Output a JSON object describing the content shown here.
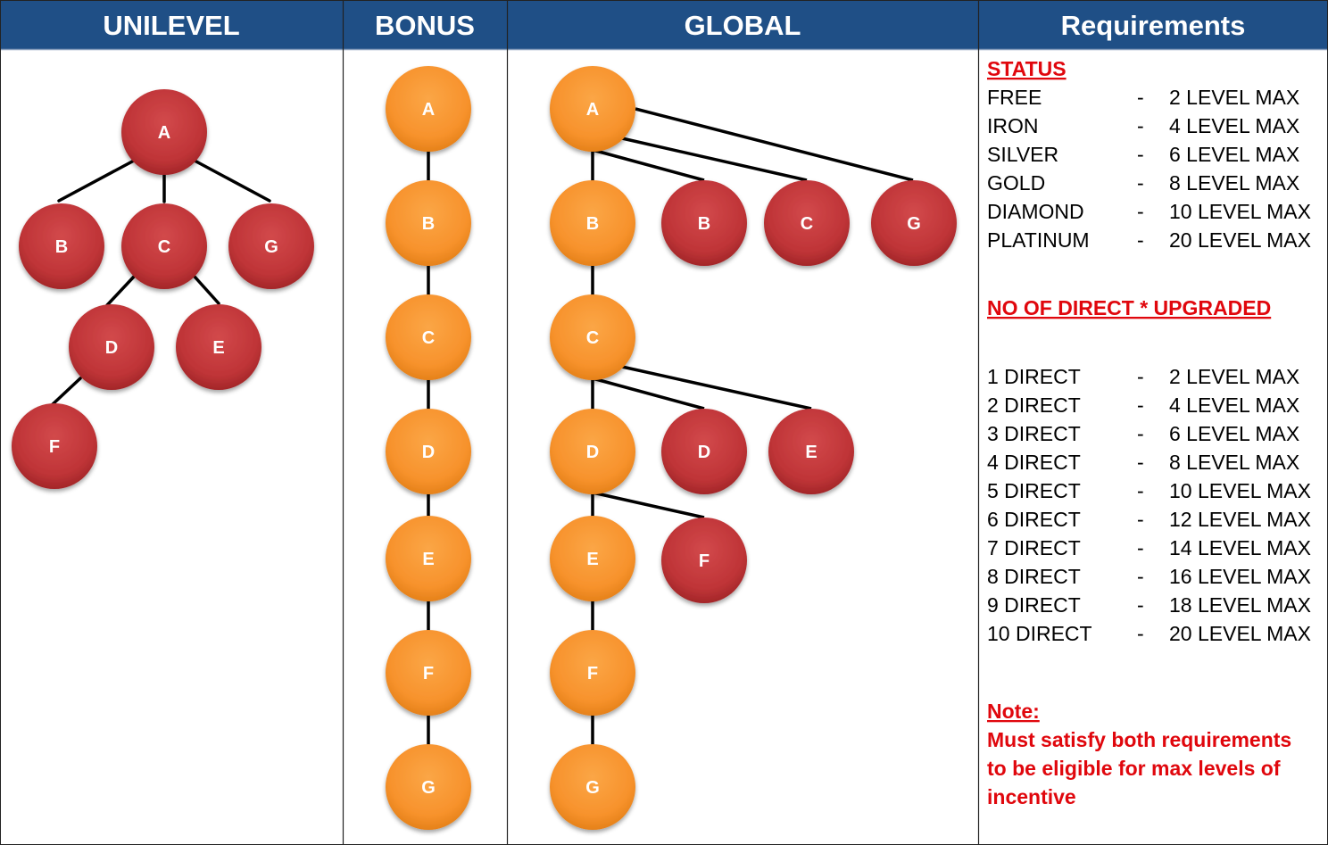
{
  "headers": {
    "unilevel": "UNILEVEL",
    "bonus": "BONUS",
    "global": "GLOBAL",
    "requirements": "Requirements"
  },
  "colors": {
    "header_bg": "#1f4f86",
    "red_node": "#c0393b",
    "orange_node": "#f8952e",
    "accent_text": "#e0070d",
    "line": "#000000"
  },
  "unilevel": {
    "nodes": [
      "A",
      "B",
      "C",
      "G",
      "D",
      "E",
      "F"
    ]
  },
  "bonus": {
    "nodes": [
      "A",
      "B",
      "C",
      "D",
      "E",
      "F",
      "G"
    ]
  },
  "global": {
    "spine": [
      "A",
      "B",
      "C",
      "D",
      "E",
      "F",
      "G"
    ],
    "branches": [
      "B",
      "C",
      "G",
      "D",
      "E",
      "F"
    ]
  },
  "requirements": {
    "status_heading": "STATUS",
    "status_rows": [
      {
        "label": "FREE",
        "dash": "-",
        "value": "2 LEVEL MAX"
      },
      {
        "label": "IRON",
        "dash": "-",
        "value": "4 LEVEL MAX"
      },
      {
        "label": "SILVER",
        "dash": "-",
        "value": "6 LEVEL MAX"
      },
      {
        "label": "GOLD",
        "dash": "-",
        "value": "8 LEVEL MAX"
      },
      {
        "label": "DIAMOND",
        "dash": "-",
        "value": "10 LEVEL MAX"
      },
      {
        "label": "PLATINUM",
        "dash": "-",
        "value": "20 LEVEL MAX"
      }
    ],
    "direct_heading": "NO OF DIRECT * UPGRADED",
    "direct_rows": [
      {
        "label": "1 DIRECT",
        "dash": "-",
        "value": "2 LEVEL MAX"
      },
      {
        "label": "2 DIRECT",
        "dash": "-",
        "value": "4 LEVEL MAX"
      },
      {
        "label": "3 DIRECT",
        "dash": "-",
        "value": "6 LEVEL MAX"
      },
      {
        "label": "4 DIRECT",
        "dash": "-",
        "value": "8 LEVEL MAX"
      },
      {
        "label": "5 DIRECT",
        "dash": "-",
        "value": "10 LEVEL MAX"
      },
      {
        "label": "6 DIRECT",
        "dash": "-",
        "value": "12 LEVEL MAX"
      },
      {
        "label": "7 DIRECT",
        "dash": "-",
        "value": "14 LEVEL MAX"
      },
      {
        "label": "8 DIRECT",
        "dash": "-",
        "value": "16 LEVEL MAX"
      },
      {
        "label": "9 DIRECT",
        "dash": "-",
        "value": "18 LEVEL MAX"
      },
      {
        "label": "10 DIRECT",
        "dash": "-",
        "value": "20 LEVEL MAX"
      }
    ],
    "note_heading": "Note:",
    "note_lines": [
      "Must satisfy both requirements",
      "to be eligible for max levels of",
      "incentive"
    ]
  }
}
